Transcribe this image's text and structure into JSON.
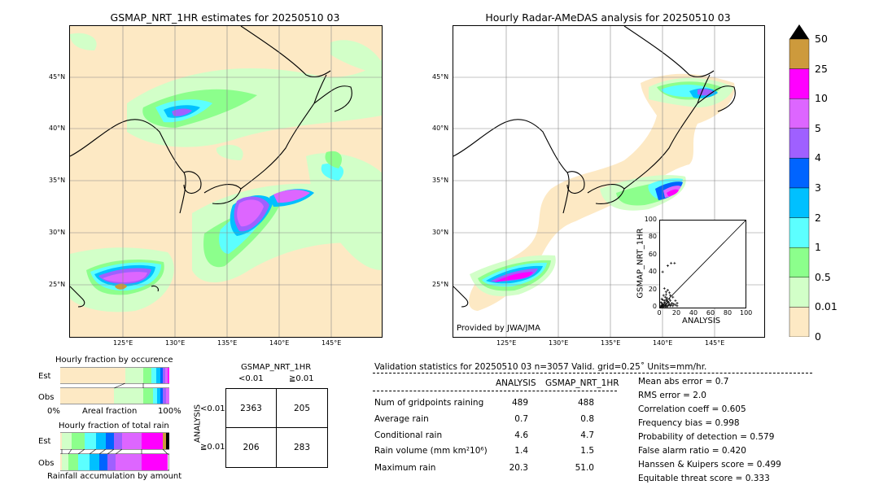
{
  "left_map": {
    "title": "GSMAP_NRT_1HR estimates for 20250510 03",
    "lat_labels": [
      "45°N",
      "40°N",
      "35°N",
      "30°N",
      "25°N"
    ],
    "lon_labels": [
      "125°E",
      "130°E",
      "135°E",
      "140°E",
      "145°E"
    ]
  },
  "right_map": {
    "title": "Hourly Radar-AMeDAS analysis for 20250510 03",
    "lat_labels": [
      "45°N",
      "40°N",
      "35°N",
      "30°N",
      "25°N"
    ],
    "lon_labels": [
      "125°E",
      "130°E",
      "135°E",
      "140°E",
      "145°E"
    ],
    "credit": "Provided by JWA/JMA"
  },
  "colorbar": {
    "labels": [
      "50",
      "25",
      "10",
      "5",
      "4",
      "3",
      "2",
      "1",
      "0.5",
      "0.01",
      "0"
    ],
    "colors": [
      "#cd9a3c",
      "#ff00ff",
      "#dd66ff",
      "#9f60ff",
      "#0064ff",
      "#00c0ff",
      "#5cffff",
      "#8cff8c",
      "#d2ffc8",
      "#fde9c4"
    ]
  },
  "scatter_inset": {
    "xlabel": "ANALYSIS",
    "ylabel": "GSMAP_NRT_1HR",
    "ticks": [
      "0",
      "20",
      "40",
      "60",
      "80",
      "100"
    ]
  },
  "chart_data": {
    "type": "scatter",
    "xlabel": "ANALYSIS",
    "ylabel": "GSMAP_NRT_1HR",
    "xlim": [
      0,
      100
    ],
    "ylim": [
      0,
      100
    ],
    "points": [
      [
        9,
        48
      ],
      [
        13,
        51
      ],
      [
        17,
        51
      ],
      [
        3,
        41
      ],
      [
        5,
        22
      ],
      [
        7,
        18
      ],
      [
        9,
        20
      ],
      [
        11,
        17
      ],
      [
        12,
        14
      ],
      [
        4,
        14
      ],
      [
        6,
        12
      ],
      [
        8,
        11
      ],
      [
        2,
        10
      ],
      [
        3,
        9
      ],
      [
        5,
        8
      ],
      [
        7,
        9
      ],
      [
        9,
        7
      ],
      [
        10,
        6
      ],
      [
        12,
        8
      ],
      [
        14,
        5
      ],
      [
        1,
        6
      ],
      [
        2,
        5
      ],
      [
        3,
        4
      ],
      [
        4,
        3
      ],
      [
        5,
        6
      ],
      [
        6,
        4
      ],
      [
        7,
        3
      ],
      [
        8,
        5
      ],
      [
        9,
        2
      ],
      [
        10,
        3
      ],
      [
        11,
        4
      ],
      [
        12,
        2
      ],
      [
        13,
        3
      ],
      [
        15,
        2
      ],
      [
        16,
        4
      ],
      [
        18,
        3
      ],
      [
        20,
        2
      ],
      [
        1,
        2
      ],
      [
        2,
        1
      ],
      [
        3,
        2
      ],
      [
        4,
        1
      ],
      [
        5,
        2
      ],
      [
        6,
        1
      ],
      [
        7,
        2
      ],
      [
        8,
        1
      ],
      [
        1,
        1
      ],
      [
        2,
        3
      ],
      [
        3,
        1
      ],
      [
        4,
        2
      ],
      [
        6,
        3
      ],
      [
        15,
        12
      ],
      [
        18,
        8
      ],
      [
        20,
        5
      ],
      [
        11,
        10
      ],
      [
        7,
        15
      ]
    ]
  },
  "occurrence": {
    "title": "Hourly fraction by occurence",
    "rows": [
      "Est",
      "Obs"
    ],
    "axis_left": "0%",
    "axis_mid": "Areal fraction",
    "axis_right": "100%"
  },
  "total_rain": {
    "title": "Hourly fraction of total rain",
    "rows": [
      "Est",
      "Obs"
    ],
    "axis_label": "Rainfall accumulation by amount"
  },
  "contingency": {
    "title": "GSMAP_NRT_1HR",
    "col_headers": [
      "<0.01",
      "≧0.01"
    ],
    "row_title": "ANALYSIS",
    "row_headers": [
      "<0.01",
      "≧0.01"
    ],
    "cells": [
      "2363",
      "205",
      "206",
      "283"
    ]
  },
  "validation": {
    "header": "Validation statistics for 20250510 03  n=3057 Valid. grid=0.25˚ Units=mm/hr.",
    "col_analysis": "ANALYSIS",
    "col_gsmap": "GSMAP_NRT_1HR",
    "rows": [
      {
        "label": "Num of gridpoints raining",
        "a": "489",
        "g": "488"
      },
      {
        "label": "Average rain",
        "a": "0.7",
        "g": "0.8"
      },
      {
        "label": "Conditional rain",
        "a": "4.6",
        "g": "4.7"
      },
      {
        "label": "Rain volume (mm km²10⁶)",
        "a": "1.4",
        "g": "1.5"
      },
      {
        "label": "Maximum rain",
        "a": "20.3",
        "g": "51.0"
      }
    ],
    "scores": [
      "Mean abs error =    0.7",
      "RMS error =    2.0",
      "Correlation coeff =  0.605",
      "Frequency bias =  0.998",
      "Probability of detection =  0.579",
      "False alarm ratio =  0.420",
      "Hanssen & Kuipers score =  0.499",
      "Equitable threat score =  0.333"
    ]
  }
}
